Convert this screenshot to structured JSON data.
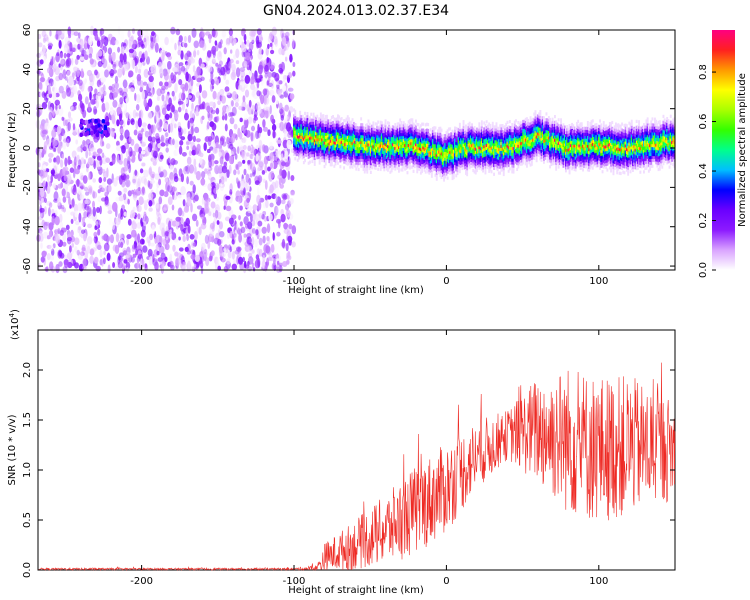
{
  "title": "GN04.2024.013.02.37.E34",
  "chart_data": [
    {
      "type": "heatmap",
      "xlabel": "Height of straight line (km)",
      "ylabel": "Frequency (Hz)",
      "xlim": [
        -268,
        150
      ],
      "ylim": [
        -62,
        60
      ],
      "x_ticks": [
        -200,
        -100,
        0,
        100
      ],
      "y_ticks": [
        60,
        40,
        20,
        0,
        -20,
        -40,
        -60
      ],
      "regions": [
        {
          "x_range": [
            -268,
            -100
          ],
          "freq_range": [
            -62,
            60
          ],
          "amplitude_range": [
            0.0,
            0.2
          ],
          "pattern": "noise"
        },
        {
          "x_range": [
            -240,
            -222
          ],
          "freq_center": 10,
          "amplitude_range": [
            0.1,
            0.35
          ],
          "pattern": "blob"
        },
        {
          "x_range": [
            -100,
            150
          ],
          "freq_center_profile": [
            {
              "x": -100,
              "f": 7
            },
            {
              "x": -80,
              "f": 4
            },
            {
              "x": -50,
              "f": 1
            },
            {
              "x": -20,
              "f": 1
            },
            {
              "x": 0,
              "f": -4
            },
            {
              "x": 10,
              "f": 0
            },
            {
              "x": 40,
              "f": 0
            },
            {
              "x": 60,
              "f": 6
            },
            {
              "x": 80,
              "f": 0
            },
            {
              "x": 100,
              "f": 1
            },
            {
              "x": 120,
              "f": 0
            },
            {
              "x": 150,
              "f": 4
            }
          ],
          "band_halfwidth": 8,
          "amplitude_range": [
            0.1,
            0.8
          ],
          "pattern": "band"
        }
      ],
      "colorbar": {
        "label": "Normalized spectral amplitude",
        "ticks": [
          0.0,
          0.2,
          0.4,
          0.6,
          0.8
        ],
        "range": [
          0,
          0.97
        ],
        "colors": [
          "#ffffff",
          "#d9a3ff",
          "#8c1aff",
          "#6a00ff",
          "#0000ff",
          "#00bfff",
          "#00ff8c",
          "#33ff00",
          "#aaff00",
          "#ffff00",
          "#ff9900",
          "#ff2020",
          "#ff0080"
        ]
      }
    },
    {
      "type": "line",
      "xlabel": "Height of straight line (km)",
      "ylabel": "SNR (10 * v/v)",
      "y_scale_label": "(x10",
      "y_scale_exp": "4",
      "y_scale_close": ")",
      "xlim": [
        -268,
        150
      ],
      "ylim": [
        0,
        2.4
      ],
      "x_ticks": [
        -200,
        -100,
        0,
        100
      ],
      "y_ticks": [
        0.0,
        0.5,
        1.0,
        1.5,
        2.0
      ],
      "series": [
        {
          "color": "#ee2a24",
          "envelope": [
            {
              "x": -268,
              "mean": 0.01,
              "amp": 0.01
            },
            {
              "x": -100,
              "mean": 0.01,
              "amp": 0.01
            },
            {
              "x": -85,
              "mean": 0.02,
              "amp": 0.03
            },
            {
              "x": -80,
              "mean": 0.12,
              "amp": 0.15
            },
            {
              "x": -60,
              "mean": 0.25,
              "amp": 0.25
            },
            {
              "x": -40,
              "mean": 0.4,
              "amp": 0.35
            },
            {
              "x": -20,
              "mean": 0.6,
              "amp": 0.45
            },
            {
              "x": 0,
              "mean": 0.82,
              "amp": 0.45
            },
            {
              "x": 20,
              "mean": 1.15,
              "amp": 0.35
            },
            {
              "x": 40,
              "mean": 1.35,
              "amp": 0.25
            },
            {
              "x": 60,
              "mean": 1.4,
              "amp": 0.55
            },
            {
              "x": 80,
              "mean": 1.3,
              "amp": 0.75
            },
            {
              "x": 100,
              "mean": 1.2,
              "amp": 0.75
            },
            {
              "x": 120,
              "mean": 1.25,
              "amp": 0.7
            },
            {
              "x": 150,
              "mean": 1.2,
              "amp": 0.5
            }
          ]
        }
      ]
    }
  ]
}
